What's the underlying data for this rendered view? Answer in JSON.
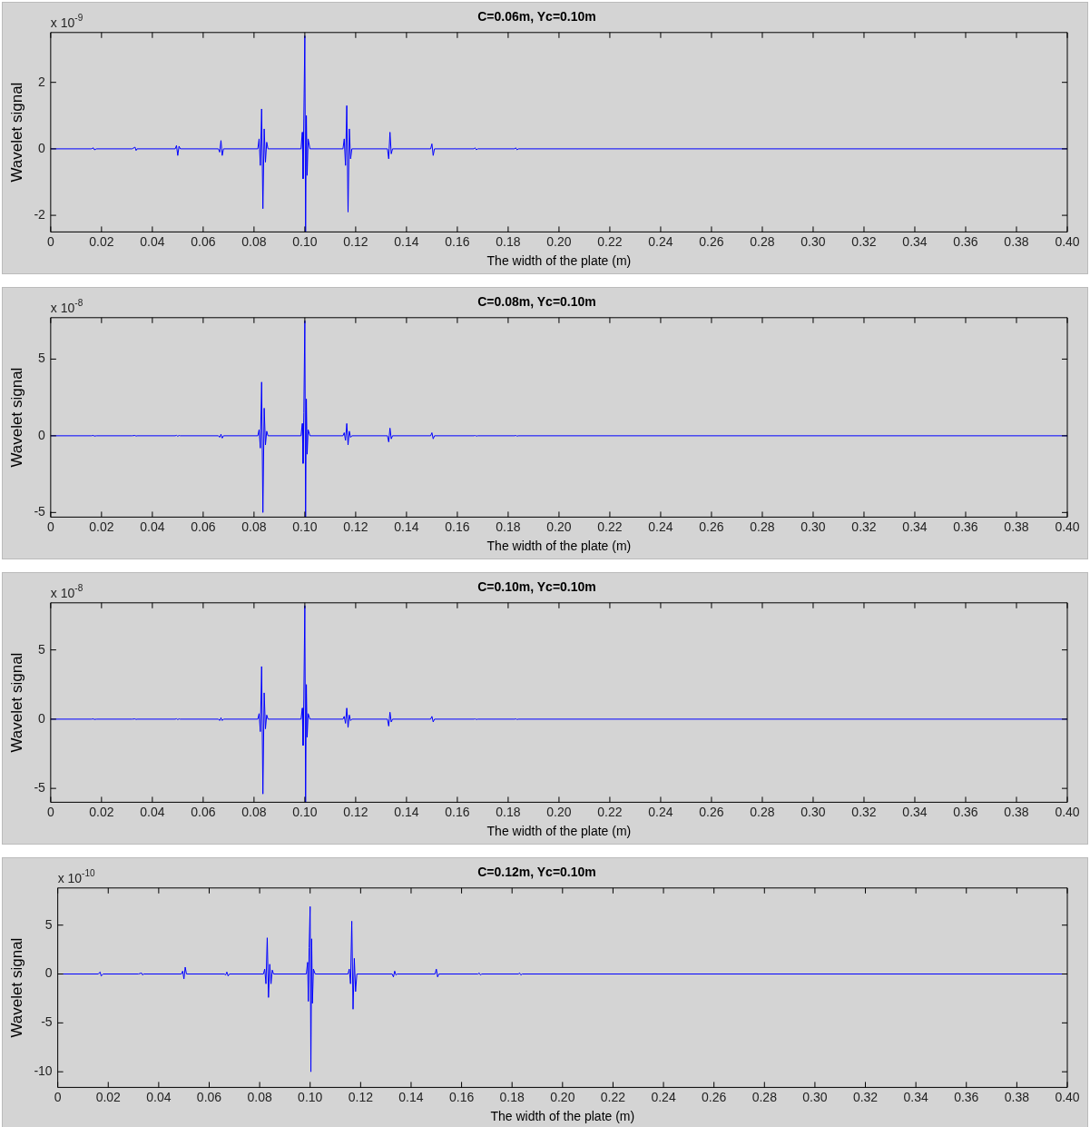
{
  "chart_data": [
    {
      "type": "line",
      "title": "C=0.06m, Yc=0.10m",
      "xlabel": "The width of the plate (m)",
      "ylabel": "Wavelet signal",
      "annotations": [
        "x 10$^{-9}$"
      ],
      "xlim": [
        0,
        0.4
      ],
      "ylim": [
        -2.5,
        3.5
      ],
      "yticks": [
        -2,
        0,
        2
      ],
      "xticks": [
        {
          "value": 0,
          "label": "0"
        },
        {
          "value": 0.02,
          "label": "0.02"
        },
        {
          "value": 0.04,
          "label": "0.04"
        },
        {
          "value": 0.06,
          "label": "0.06"
        },
        {
          "value": 0.08,
          "label": "0.08"
        },
        {
          "value": 0.1,
          "label": "0.10"
        },
        {
          "value": 0.12,
          "label": "0.12"
        },
        {
          "value": 0.14,
          "label": "0.14"
        },
        {
          "value": 0.16,
          "label": "0.16"
        },
        {
          "value": 0.18,
          "label": "0.18"
        },
        {
          "value": 0.2,
          "label": "0.20"
        },
        {
          "value": 0.22,
          "label": "0.22"
        },
        {
          "value": 0.24,
          "label": "0.24"
        },
        {
          "value": 0.26,
          "label": "0.26"
        },
        {
          "value": 0.28,
          "label": "0.28"
        },
        {
          "value": 0.3,
          "label": "0.30"
        },
        {
          "value": 0.32,
          "label": "0.32"
        },
        {
          "value": 0.34,
          "label": "0.34"
        },
        {
          "value": 0.36,
          "label": "0.36"
        },
        {
          "value": 0.38,
          "label": "0.38"
        },
        {
          "value": 0.4,
          "label": "0.40"
        }
      ],
      "x": [
        0,
        0.016,
        0.0168,
        0.0172,
        0.018,
        0.032,
        0.0332,
        0.0336,
        0.034,
        0.049,
        0.0495,
        0.05,
        0.0505,
        0.051,
        0.066,
        0.0665,
        0.067,
        0.0675,
        0.068,
        0.0815,
        0.082,
        0.0825,
        0.083,
        0.0835,
        0.084,
        0.0845,
        0.085,
        0.0855,
        0.0985,
        0.099,
        0.0993,
        0.0996,
        0.1,
        0.1003,
        0.1006,
        0.1009,
        0.1013,
        0.102,
        0.115,
        0.1155,
        0.116,
        0.1165,
        0.117,
        0.1175,
        0.118,
        0.1185,
        0.1325,
        0.133,
        0.1335,
        0.134,
        0.1345,
        0.1495,
        0.15,
        0.1505,
        0.151,
        0.1665,
        0.167,
        0.1675,
        0.168,
        0.1825,
        0.183,
        0.1835,
        0.184,
        0.4
      ],
      "series": [
        {
          "color": "#0000ff",
          "values": [
            0,
            0,
            0.03,
            -0.03,
            0,
            0,
            0.05,
            -0.05,
            0,
            0,
            0.1,
            -0.2,
            0.08,
            0,
            0,
            -0.1,
            0.25,
            -0.2,
            0,
            0,
            0.3,
            -0.5,
            1.2,
            -1.8,
            0.6,
            -0.4,
            0.2,
            0,
            0,
            0.5,
            -0.9,
            0.9,
            3.4,
            -2.5,
            1.0,
            -0.8,
            0.3,
            0,
            0,
            0.3,
            -0.5,
            1.3,
            -1.9,
            0.6,
            -0.3,
            0,
            0,
            -0.3,
            0.5,
            -0.15,
            0,
            0,
            0.15,
            -0.2,
            0,
            0,
            0.03,
            -0.03,
            0,
            0,
            0.03,
            -0.03,
            0,
            0
          ]
        }
      ]
    },
    {
      "type": "line",
      "title": "C=0.08m, Yc=0.10m",
      "xlabel": "The width of the plate (m)",
      "ylabel": "Wavelet signal",
      "annotations": [
        "x 10$^{-8}$"
      ],
      "xlim": [
        0,
        0.4
      ],
      "ylim": [
        -5.3,
        7.7
      ],
      "yticks": [
        -5,
        0,
        5
      ],
      "xticks": [
        {
          "value": 0,
          "label": "0"
        },
        {
          "value": 0.02,
          "label": "0.02"
        },
        {
          "value": 0.04,
          "label": "0.04"
        },
        {
          "value": 0.06,
          "label": "0.06"
        },
        {
          "value": 0.08,
          "label": "0.08"
        },
        {
          "value": 0.1,
          "label": "0.10"
        },
        {
          "value": 0.12,
          "label": "0.12"
        },
        {
          "value": 0.14,
          "label": "0.14"
        },
        {
          "value": 0.16,
          "label": "0.16"
        },
        {
          "value": 0.18,
          "label": "0.18"
        },
        {
          "value": 0.2,
          "label": "0.20"
        },
        {
          "value": 0.22,
          "label": "0.22"
        },
        {
          "value": 0.24,
          "label": "0.24"
        },
        {
          "value": 0.26,
          "label": "0.26"
        },
        {
          "value": 0.28,
          "label": "0.28"
        },
        {
          "value": 0.3,
          "label": "0.30"
        },
        {
          "value": 0.32,
          "label": "0.32"
        },
        {
          "value": 0.34,
          "label": "0.34"
        },
        {
          "value": 0.36,
          "label": "0.36"
        },
        {
          "value": 0.38,
          "label": "0.38"
        },
        {
          "value": 0.4,
          "label": "0.40"
        }
      ],
      "x": [
        0,
        0.016,
        0.0168,
        0.0172,
        0.018,
        0.032,
        0.0332,
        0.0336,
        0.034,
        0.049,
        0.0495,
        0.05,
        0.0505,
        0.051,
        0.066,
        0.0665,
        0.067,
        0.0675,
        0.068,
        0.0815,
        0.082,
        0.0825,
        0.083,
        0.0835,
        0.084,
        0.0845,
        0.085,
        0.0855,
        0.0985,
        0.099,
        0.0993,
        0.0996,
        0.1,
        0.1003,
        0.1006,
        0.1009,
        0.1013,
        0.102,
        0.115,
        0.1155,
        0.116,
        0.1165,
        0.117,
        0.1175,
        0.118,
        0.1185,
        0.1325,
        0.133,
        0.1335,
        0.134,
        0.1345,
        0.1495,
        0.15,
        0.1505,
        0.151,
        0.1665,
        0.167,
        0.1675,
        0.168,
        0.1825,
        0.183,
        0.1835,
        0.184,
        0.4
      ],
      "series": [
        {
          "color": "#0000ff",
          "values": [
            0,
            0,
            0.02,
            -0.02,
            0,
            0,
            0.02,
            -0.02,
            0,
            0,
            0.03,
            -0.03,
            0.02,
            0,
            0,
            -0.1,
            0.1,
            -0.15,
            0,
            0,
            0.4,
            -0.8,
            3.5,
            -5.0,
            1.8,
            -0.6,
            0.3,
            0,
            0,
            0.8,
            -1.8,
            1.5,
            7.5,
            -5.3,
            2.4,
            -1.2,
            0.4,
            0,
            0,
            0.2,
            -0.3,
            0.8,
            -0.6,
            0.3,
            -0.1,
            0,
            0,
            -0.4,
            0.5,
            -0.2,
            0,
            0,
            0.2,
            -0.2,
            0,
            0,
            0.02,
            -0.02,
            0,
            0,
            0.02,
            -0.02,
            0,
            0
          ]
        }
      ]
    },
    {
      "type": "line",
      "title": "C=0.10m, Yc=0.10m",
      "xlabel": "The width of the plate (m)",
      "ylabel": "Wavelet signal",
      "annotations": [
        "x 10$^{-8}$"
      ],
      "xlim": [
        0,
        0.4
      ],
      "ylim": [
        -6,
        8.4
      ],
      "yticks": [
        -5,
        0,
        5
      ],
      "xticks": [
        {
          "value": 0,
          "label": "0"
        },
        {
          "value": 0.02,
          "label": "0.02"
        },
        {
          "value": 0.04,
          "label": "0.04"
        },
        {
          "value": 0.06,
          "label": "0.06"
        },
        {
          "value": 0.08,
          "label": "0.08"
        },
        {
          "value": 0.1,
          "label": "0.10"
        },
        {
          "value": 0.12,
          "label": "0.12"
        },
        {
          "value": 0.14,
          "label": "0.14"
        },
        {
          "value": 0.16,
          "label": "0.16"
        },
        {
          "value": 0.18,
          "label": "0.18"
        },
        {
          "value": 0.2,
          "label": "0.20"
        },
        {
          "value": 0.22,
          "label": "0.22"
        },
        {
          "value": 0.24,
          "label": "0.24"
        },
        {
          "value": 0.26,
          "label": "0.26"
        },
        {
          "value": 0.28,
          "label": "0.28"
        },
        {
          "value": 0.3,
          "label": "0.30"
        },
        {
          "value": 0.32,
          "label": "0.32"
        },
        {
          "value": 0.34,
          "label": "0.34"
        },
        {
          "value": 0.36,
          "label": "0.36"
        },
        {
          "value": 0.38,
          "label": "0.38"
        },
        {
          "value": 0.4,
          "label": "0.40"
        }
      ],
      "x": [
        0,
        0.016,
        0.0168,
        0.0172,
        0.018,
        0.032,
        0.0332,
        0.0336,
        0.034,
        0.049,
        0.0495,
        0.05,
        0.0505,
        0.051,
        0.066,
        0.0665,
        0.067,
        0.0675,
        0.068,
        0.0815,
        0.082,
        0.0825,
        0.083,
        0.0835,
        0.084,
        0.0845,
        0.085,
        0.0855,
        0.0985,
        0.099,
        0.0993,
        0.0996,
        0.1,
        0.1003,
        0.1006,
        0.1009,
        0.1013,
        0.102,
        0.115,
        0.1155,
        0.116,
        0.1165,
        0.117,
        0.1175,
        0.118,
        0.1185,
        0.1325,
        0.133,
        0.1335,
        0.134,
        0.1345,
        0.1495,
        0.15,
        0.1505,
        0.151,
        0.1665,
        0.167,
        0.1675,
        0.168,
        0.1825,
        0.183,
        0.1835,
        0.184,
        0.4
      ],
      "series": [
        {
          "color": "#0000ff",
          "values": [
            0,
            0,
            0.02,
            -0.02,
            0,
            0,
            0.02,
            -0.02,
            0,
            0,
            0.03,
            -0.03,
            0.02,
            0,
            0,
            -0.1,
            0.1,
            -0.1,
            0,
            0,
            0.4,
            -0.9,
            3.8,
            -5.4,
            1.9,
            -0.7,
            0.3,
            0,
            0,
            0.8,
            -1.9,
            1.5,
            8.2,
            -6.0,
            2.5,
            -1.3,
            0.4,
            0,
            0,
            0.2,
            -0.3,
            0.8,
            -0.6,
            0.3,
            -0.1,
            0,
            0,
            -0.5,
            0.5,
            -0.2,
            0,
            0,
            0.2,
            -0.2,
            0,
            0,
            0.02,
            -0.02,
            0,
            0,
            0.02,
            -0.02,
            0,
            0
          ]
        }
      ]
    },
    {
      "type": "line",
      "title": "C=0.12m, Yc=0.10m",
      "xlabel": "The width of the plate (m)",
      "ylabel": "Wavelet signal",
      "annotations": [
        "x 10$^{-10}$"
      ],
      "xlim": [
        0,
        0.4
      ],
      "ylim": [
        -11.6,
        8.8
      ],
      "yticks": [
        -10,
        -5,
        0,
        5
      ],
      "xticks": [
        {
          "value": 0,
          "label": "0"
        },
        {
          "value": 0.02,
          "label": "0.02"
        },
        {
          "value": 0.04,
          "label": "0.04"
        },
        {
          "value": 0.06,
          "label": "0.06"
        },
        {
          "value": 0.08,
          "label": "0.08"
        },
        {
          "value": 0.1,
          "label": "0.10"
        },
        {
          "value": 0.12,
          "label": "0.12"
        },
        {
          "value": 0.14,
          "label": "0.14"
        },
        {
          "value": 0.16,
          "label": "0.16"
        },
        {
          "value": 0.18,
          "label": "0.18"
        },
        {
          "value": 0.2,
          "label": "0.20"
        },
        {
          "value": 0.22,
          "label": "0.22"
        },
        {
          "value": 0.24,
          "label": "0.24"
        },
        {
          "value": 0.26,
          "label": "0.26"
        },
        {
          "value": 0.28,
          "label": "0.28"
        },
        {
          "value": 0.3,
          "label": "0.30"
        },
        {
          "value": 0.32,
          "label": "0.32"
        },
        {
          "value": 0.34,
          "label": "0.34"
        },
        {
          "value": 0.36,
          "label": "0.36"
        },
        {
          "value": 0.38,
          "label": "0.38"
        },
        {
          "value": 0.4,
          "label": "0.40"
        }
      ],
      "x": [
        0,
        0.016,
        0.0168,
        0.0172,
        0.018,
        0.032,
        0.0332,
        0.0336,
        0.034,
        0.049,
        0.0495,
        0.05,
        0.0505,
        0.051,
        0.066,
        0.0665,
        0.067,
        0.0675,
        0.068,
        0.0815,
        0.082,
        0.0825,
        0.083,
        0.0835,
        0.084,
        0.0845,
        0.085,
        0.0855,
        0.0985,
        0.099,
        0.0993,
        0.0996,
        0.1,
        0.1003,
        0.1006,
        0.1009,
        0.1013,
        0.102,
        0.115,
        0.1155,
        0.116,
        0.1165,
        0.117,
        0.1175,
        0.118,
        0.1185,
        0.1325,
        0.133,
        0.1335,
        0.134,
        0.1345,
        0.1495,
        0.15,
        0.1505,
        0.151,
        0.1665,
        0.167,
        0.1675,
        0.168,
        0.1825,
        0.183,
        0.1835,
        0.184,
        0.4
      ],
      "series": [
        {
          "color": "#0000ff",
          "values": [
            0,
            0,
            0.2,
            -0.2,
            0,
            0,
            0.1,
            -0.1,
            0,
            0,
            0.3,
            -0.5,
            0.7,
            0,
            0,
            -0.1,
            0.2,
            -0.2,
            0,
            0,
            0.5,
            -1.0,
            3.7,
            -2.4,
            1.0,
            -1.0,
            0.4,
            0,
            0,
            1.2,
            -2.8,
            2.7,
            6.9,
            -10,
            3.6,
            -3.0,
            0.5,
            0,
            0,
            0.5,
            -1.0,
            5.4,
            -3.6,
            1.6,
            -1.8,
            0,
            0,
            -0.3,
            0.3,
            -0.1,
            0,
            0,
            0.5,
            -0.3,
            0,
            0,
            0.1,
            -0.1,
            0,
            0,
            0.1,
            -0.1,
            0,
            0
          ]
        }
      ]
    }
  ]
}
